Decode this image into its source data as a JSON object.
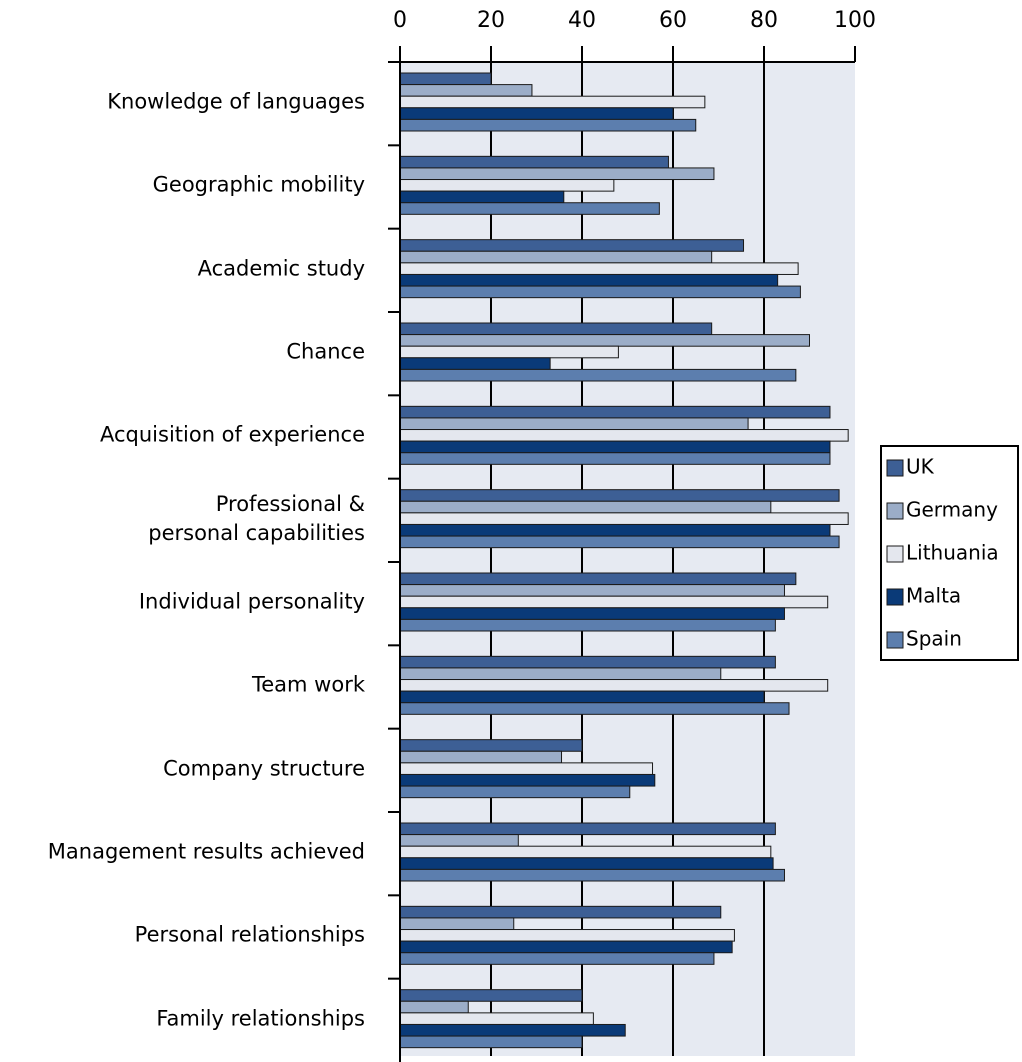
{
  "chart_data": {
    "type": "barh",
    "categories": [
      "Knowledge of languages",
      "Geographic mobility",
      "Academic study",
      "Chance",
      "Acquisition of experience",
      "Professional &\npersonal capabilities",
      "Individual personality",
      "Team work",
      "Company structure",
      "Management results achieved",
      "Personal relationships",
      "Family relationships"
    ],
    "series": [
      {
        "name": "UK",
        "color": "#3d5f95",
        "values": [
          20,
          59,
          75.5,
          68.5,
          94.5,
          96.5,
          87,
          82.5,
          40,
          82.5,
          70.5,
          40
        ]
      },
      {
        "name": "Germany",
        "color": "#9badc8",
        "values": [
          29,
          69,
          68.5,
          90,
          76.5,
          81.5,
          84.5,
          70.5,
          35.5,
          26,
          25,
          15
        ]
      },
      {
        "name": "Lithuania",
        "color": "#e4e7ee",
        "values": [
          67,
          47,
          87.5,
          48,
          98.5,
          98.5,
          94,
          94,
          55.5,
          81.5,
          73.5,
          42.5
        ]
      },
      {
        "name": "Malta",
        "color": "#0a3a78",
        "values": [
          60,
          36,
          83,
          33,
          94.5,
          94.5,
          84.5,
          80,
          56,
          82,
          73,
          49.5
        ]
      },
      {
        "name": "Spain",
        "color": "#5c7eae",
        "values": [
          65,
          57,
          88,
          87,
          94.5,
          96.5,
          82.5,
          85.5,
          50.5,
          84.5,
          69,
          40
        ]
      }
    ],
    "xlim": [
      0,
      100
    ],
    "xticks": [
      0,
      20,
      40,
      60,
      80,
      100
    ],
    "grid": true,
    "legend": "right"
  }
}
